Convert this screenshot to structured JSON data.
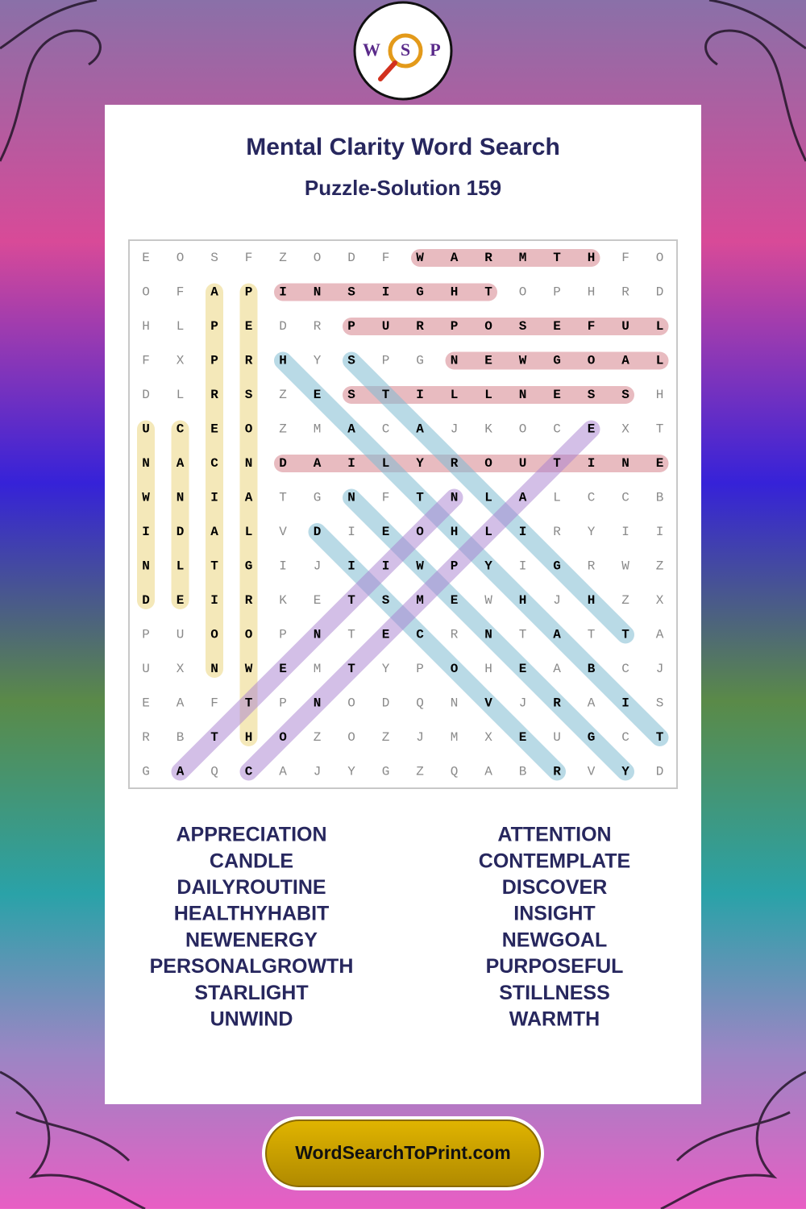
{
  "logo": {
    "letters": [
      "W",
      "S",
      "P"
    ]
  },
  "header": {
    "title": "Mental Clarity Word Search",
    "subtitle": "Puzzle-Solution 159"
  },
  "grid": {
    "rows": [
      [
        "E",
        "O",
        "S",
        "F",
        "Z",
        "O",
        "D",
        "F",
        "W",
        "A",
        "R",
        "M",
        "T",
        "H",
        "F",
        "O"
      ],
      [
        "O",
        "F",
        "A",
        "P",
        "I",
        "N",
        "S",
        "I",
        "G",
        "H",
        "T",
        "O",
        "P",
        "H",
        "R",
        "D"
      ],
      [
        "H",
        "L",
        "P",
        "E",
        "D",
        "R",
        "P",
        "U",
        "R",
        "P",
        "O",
        "S",
        "E",
        "F",
        "U",
        "L"
      ],
      [
        "F",
        "X",
        "P",
        "R",
        "H",
        "Y",
        "S",
        "P",
        "G",
        "N",
        "E",
        "W",
        "G",
        "O",
        "A",
        "L"
      ],
      [
        "D",
        "L",
        "R",
        "S",
        "Z",
        "E",
        "S",
        "T",
        "I",
        "L",
        "L",
        "N",
        "E",
        "S",
        "S",
        "H"
      ],
      [
        "U",
        "C",
        "E",
        "O",
        "Z",
        "M",
        "A",
        "C",
        "A",
        "J",
        "K",
        "O",
        "C",
        "E",
        "X",
        "T"
      ],
      [
        "N",
        "A",
        "C",
        "N",
        "D",
        "A",
        "I",
        "L",
        "Y",
        "R",
        "O",
        "U",
        "T",
        "I",
        "N",
        "E"
      ],
      [
        "W",
        "N",
        "I",
        "A",
        "T",
        "G",
        "N",
        "F",
        "T",
        "N",
        "L",
        "A",
        "L",
        "C",
        "C",
        "B"
      ],
      [
        "I",
        "D",
        "A",
        "L",
        "V",
        "D",
        "I",
        "E",
        "O",
        "H",
        "L",
        "I",
        "R",
        "Y",
        "I",
        "I"
      ],
      [
        "N",
        "L",
        "T",
        "G",
        "I",
        "J",
        "I",
        "I",
        "W",
        "P",
        "Y",
        "I",
        "G",
        "R",
        "W",
        "Z"
      ],
      [
        "D",
        "E",
        "I",
        "R",
        "K",
        "E",
        "T",
        "S",
        "M",
        "E",
        "W",
        "H",
        "J",
        "H",
        "Z",
        "X"
      ],
      [
        "P",
        "U",
        "O",
        "O",
        "P",
        "N",
        "T",
        "E",
        "C",
        "R",
        "N",
        "T",
        "A",
        "T",
        "T",
        "A"
      ],
      [
        "U",
        "X",
        "N",
        "W",
        "E",
        "M",
        "T",
        "Y",
        "P",
        "O",
        "H",
        "E",
        "A",
        "B",
        "C",
        "J"
      ],
      [
        "E",
        "A",
        "F",
        "T",
        "P",
        "N",
        "O",
        "D",
        "Q",
        "N",
        "V",
        "J",
        "R",
        "A",
        "I",
        "S"
      ],
      [
        "R",
        "B",
        "T",
        "H",
        "O",
        "Z",
        "O",
        "Z",
        "J",
        "M",
        "X",
        "E",
        "U",
        "G",
        "C",
        "T"
      ],
      [
        "G",
        "A",
        "Q",
        "C",
        "A",
        "J",
        "Y",
        "G",
        "Z",
        "Q",
        "A",
        "B",
        "R",
        "V",
        "Y",
        "D"
      ]
    ]
  },
  "words": {
    "left": [
      "APPRECIATION",
      "CANDLE",
      "DAILYROUTINE",
      "HEALTHYHABIT",
      "NEWENERGY",
      "PERSONALGROWTH",
      "STARLIGHT",
      "UNWIND"
    ],
    "right": [
      "ATTENTION",
      "CONTEMPLATE",
      "DISCOVER",
      "INSIGHT",
      "NEWGOAL",
      "PURPOSEFUL",
      "STILLNESS",
      "WARMTH"
    ]
  },
  "footer": {
    "site": "WordSearchToPrint.com"
  }
}
